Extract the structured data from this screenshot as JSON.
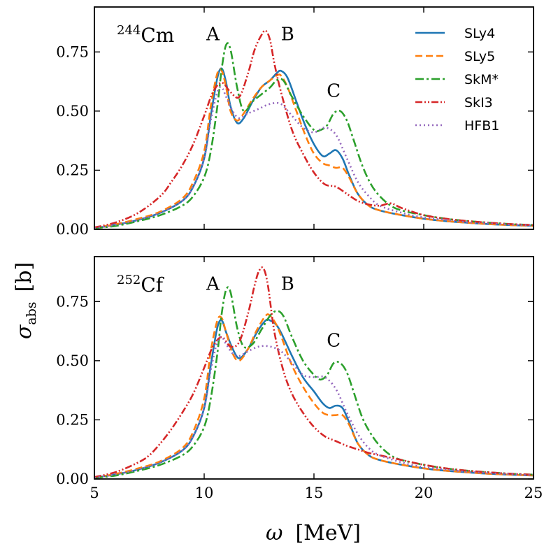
{
  "chart_data": {
    "type": "line",
    "ylabel": {
      "symbol": "σ",
      "subscript": "abs",
      "unit": "[b]"
    },
    "xlabel": {
      "symbol": "ω",
      "unit": "[MeV]"
    },
    "xlim": [
      5,
      25
    ],
    "ylim": [
      0,
      0.94
    ],
    "xticks": [
      5,
      10,
      15,
      20,
      25
    ],
    "xtick_labels": [
      "5",
      "10",
      "15",
      "20",
      "25"
    ],
    "yticks": [
      0.0,
      0.25,
      0.5,
      0.75
    ],
    "ytick_labels": [
      "0.00",
      "0.25",
      "0.50",
      "0.75"
    ],
    "grid": false,
    "legend_location": "top-right",
    "series_styles": [
      {
        "name": "SLy4",
        "color": "#1f77b4",
        "dash": "solid"
      },
      {
        "name": "SLy5",
        "color": "#ff7f0e",
        "dash": "dashed"
      },
      {
        "name": "SkM*",
        "color": "#2ca02c",
        "dash": "dashdot"
      },
      {
        "name": "SkI3",
        "color": "#d62728",
        "dash": "dashdotdot"
      },
      {
        "name": "HFB1",
        "color": "#9467bd",
        "dash": "dotted"
      }
    ],
    "panels": [
      {
        "nucleus_mass": "244",
        "nucleus_symbol": "Cm",
        "peak_labels": [
          {
            "text": "A",
            "x": 10.4,
            "y": 0.8
          },
          {
            "text": "B",
            "x": 13.8,
            "y": 0.8
          },
          {
            "text": "C",
            "x": 15.9,
            "y": 0.56
          }
        ],
        "series": [
          {
            "name": "SLy4",
            "x": [
              5,
              6,
              7,
              8,
              9,
              9.5,
              10,
              10.3,
              10.6,
              10.8,
              11,
              11.2,
              11.5,
              11.8,
              12.2,
              12.6,
              13,
              13.3,
              13.5,
              13.8,
              14.2,
              14.6,
              15,
              15.4,
              15.7,
              16,
              16.3,
              16.6,
              17,
              17.5,
              18,
              19,
              20,
              21,
              22,
              23,
              24,
              25
            ],
            "values": [
              0.005,
              0.02,
              0.04,
              0.07,
              0.12,
              0.18,
              0.3,
              0.48,
              0.64,
              0.68,
              0.62,
              0.52,
              0.45,
              0.47,
              0.54,
              0.6,
              0.63,
              0.66,
              0.67,
              0.64,
              0.54,
              0.44,
              0.36,
              0.31,
              0.32,
              0.335,
              0.3,
              0.23,
              0.15,
              0.1,
              0.08,
              0.06,
              0.045,
              0.035,
              0.028,
              0.022,
              0.018,
              0.015
            ]
          },
          {
            "name": "SLy5",
            "x": [
              5,
              6,
              7,
              8,
              9,
              9.5,
              10,
              10.3,
              10.6,
              10.8,
              11,
              11.2,
              11.5,
              11.8,
              12.2,
              12.6,
              13,
              13.3,
              13.5,
              13.8,
              14.2,
              14.6,
              15,
              15.4,
              15.7,
              16,
              16.3,
              16.6,
              17,
              17.5,
              18,
              19,
              20,
              21,
              22,
              23,
              24,
              25
            ],
            "values": [
              0.006,
              0.022,
              0.045,
              0.075,
              0.13,
              0.2,
              0.33,
              0.52,
              0.66,
              0.67,
              0.6,
              0.5,
              0.46,
              0.49,
              0.55,
              0.6,
              0.63,
              0.65,
              0.65,
              0.6,
              0.5,
              0.4,
              0.32,
              0.28,
              0.27,
              0.26,
              0.26,
              0.22,
              0.15,
              0.1,
              0.08,
              0.06,
              0.045,
              0.035,
              0.028,
              0.022,
              0.018,
              0.015
            ]
          },
          {
            "name": "SkM*",
            "x": [
              5,
              6,
              7,
              8,
              9,
              9.5,
              10,
              10.3,
              10.6,
              10.8,
              11,
              11.2,
              11.5,
              11.8,
              12.2,
              12.6,
              13,
              13.3,
              13.6,
              14,
              14.5,
              15,
              15.3,
              15.6,
              15.9,
              16.2,
              16.5,
              16.8,
              17.2,
              17.6,
              18,
              18.5,
              19,
              20,
              21,
              22,
              23,
              24,
              25
            ],
            "values": [
              0.005,
              0.015,
              0.035,
              0.06,
              0.1,
              0.14,
              0.22,
              0.33,
              0.52,
              0.68,
              0.78,
              0.76,
              0.6,
              0.5,
              0.54,
              0.57,
              0.6,
              0.63,
              0.63,
              0.56,
              0.48,
              0.42,
              0.42,
              0.44,
              0.49,
              0.5,
              0.46,
              0.38,
              0.27,
              0.19,
              0.14,
              0.1,
              0.08,
              0.06,
              0.045,
              0.035,
              0.028,
              0.022,
              0.018
            ]
          },
          {
            "name": "SkI3",
            "x": [
              5,
              6,
              7,
              8,
              8.5,
              9,
              9.5,
              10,
              10.4,
              10.8,
              11.2,
              11.6,
              12,
              12.3,
              12.6,
              12.8,
              13,
              13.2,
              13.5,
              14,
              14.5,
              15,
              15.5,
              16,
              16.5,
              17,
              17.5,
              18,
              18.5,
              19,
              20,
              21,
              22,
              23,
              24,
              25
            ],
            "values": [
              0.008,
              0.03,
              0.07,
              0.14,
              0.2,
              0.27,
              0.36,
              0.48,
              0.58,
              0.62,
              0.58,
              0.56,
              0.66,
              0.76,
              0.82,
              0.84,
              0.8,
              0.7,
              0.58,
              0.42,
              0.32,
              0.24,
              0.19,
              0.18,
              0.15,
              0.12,
              0.105,
              0.1,
              0.11,
              0.09,
              0.06,
              0.045,
              0.035,
              0.028,
              0.022,
              0.018
            ]
          },
          {
            "name": "HFB1",
            "x": [
              5,
              6,
              7,
              8,
              9,
              9.5,
              10,
              10.3,
              10.6,
              10.8,
              11,
              11.3,
              11.6,
              12,
              12.5,
              13,
              13.5,
              14,
              14.5,
              15,
              15.5,
              16,
              16.5,
              17,
              17.5,
              18,
              19,
              20,
              21,
              22,
              23,
              24,
              25
            ],
            "values": [
              0.005,
              0.02,
              0.04,
              0.07,
              0.12,
              0.18,
              0.3,
              0.46,
              0.58,
              0.6,
              0.56,
              0.5,
              0.47,
              0.49,
              0.51,
              0.53,
              0.53,
              0.48,
              0.43,
              0.41,
              0.43,
              0.4,
              0.3,
              0.2,
              0.14,
              0.1,
              0.07,
              0.05,
              0.04,
              0.03,
              0.025,
              0.02,
              0.016
            ]
          }
        ]
      },
      {
        "nucleus_mass": "252",
        "nucleus_symbol": "Cf",
        "peak_labels": [
          {
            "text": "A",
            "x": 10.4,
            "y": 0.8
          },
          {
            "text": "B",
            "x": 13.8,
            "y": 0.8
          },
          {
            "text": "C",
            "x": 15.9,
            "y": 0.56
          }
        ],
        "series": [
          {
            "name": "SLy4",
            "x": [
              5,
              6,
              7,
              8,
              9,
              9.5,
              10,
              10.3,
              10.6,
              10.8,
              11,
              11.3,
              11.6,
              12,
              12.4,
              12.8,
              13,
              13.3,
              13.6,
              14,
              14.5,
              15,
              15.4,
              15.7,
              16,
              16.3,
              16.6,
              17,
              17.5,
              18,
              19,
              20,
              21,
              22,
              23,
              24,
              25
            ],
            "values": [
              0.005,
              0.02,
              0.04,
              0.07,
              0.12,
              0.18,
              0.3,
              0.48,
              0.64,
              0.67,
              0.62,
              0.55,
              0.51,
              0.55,
              0.62,
              0.67,
              0.67,
              0.65,
              0.6,
              0.52,
              0.43,
              0.37,
              0.32,
              0.3,
              0.31,
              0.3,
              0.24,
              0.15,
              0.1,
              0.08,
              0.06,
              0.045,
              0.035,
              0.028,
              0.022,
              0.018,
              0.015
            ]
          },
          {
            "name": "SLy5",
            "x": [
              5,
              6,
              7,
              8,
              9,
              9.5,
              10,
              10.3,
              10.6,
              10.8,
              11,
              11.3,
              11.6,
              12,
              12.4,
              12.8,
              13,
              13.3,
              13.6,
              14,
              14.5,
              15,
              15.4,
              15.7,
              16,
              16.3,
              16.6,
              17,
              17.5,
              18,
              19,
              20,
              21,
              22,
              23,
              24,
              25
            ],
            "values": [
              0.006,
              0.022,
              0.045,
              0.075,
              0.13,
              0.2,
              0.34,
              0.54,
              0.67,
              0.68,
              0.62,
              0.53,
              0.5,
              0.55,
              0.63,
              0.69,
              0.69,
              0.65,
              0.58,
              0.48,
              0.39,
              0.32,
              0.28,
              0.27,
              0.27,
              0.27,
              0.23,
              0.15,
              0.1,
              0.08,
              0.06,
              0.045,
              0.035,
              0.028,
              0.022,
              0.018,
              0.015
            ]
          },
          {
            "name": "SkM*",
            "x": [
              5,
              6,
              7,
              8,
              9,
              9.5,
              10,
              10.3,
              10.6,
              10.8,
              11,
              11.2,
              11.5,
              11.8,
              12.2,
              12.6,
              13,
              13.3,
              13.6,
              14,
              14.5,
              15,
              15.3,
              15.6,
              15.9,
              16.2,
              16.5,
              16.8,
              17.2,
              17.6,
              18,
              18.5,
              19,
              20,
              21,
              22,
              23,
              24,
              25
            ],
            "values": [
              0.005,
              0.015,
              0.035,
              0.06,
              0.1,
              0.14,
              0.22,
              0.34,
              0.53,
              0.7,
              0.8,
              0.79,
              0.64,
              0.56,
              0.57,
              0.63,
              0.69,
              0.71,
              0.69,
              0.6,
              0.5,
              0.44,
              0.42,
              0.44,
              0.49,
              0.49,
              0.45,
              0.37,
              0.26,
              0.19,
              0.14,
              0.1,
              0.08,
              0.06,
              0.045,
              0.035,
              0.028,
              0.022,
              0.018
            ]
          },
          {
            "name": "SkI3",
            "x": [
              5,
              6,
              7,
              7.5,
              8,
              8.5,
              9,
              9.5,
              10,
              10.4,
              10.8,
              11.2,
              11.6,
              12,
              12.3,
              12.5,
              12.7,
              12.9,
              13.2,
              13.6,
              14,
              14.5,
              15,
              15.5,
              16,
              16.5,
              17,
              17.5,
              18,
              19,
              20,
              21,
              22,
              23,
              24,
              25
            ],
            "values": [
              0.008,
              0.03,
              0.07,
              0.1,
              0.15,
              0.21,
              0.28,
              0.36,
              0.47,
              0.56,
              0.6,
              0.56,
              0.58,
              0.7,
              0.82,
              0.88,
              0.89,
              0.82,
              0.62,
              0.46,
              0.36,
              0.28,
              0.22,
              0.18,
              0.16,
              0.14,
              0.125,
              0.11,
              0.1,
              0.08,
              0.06,
              0.045,
              0.035,
              0.028,
              0.022,
              0.018
            ]
          },
          {
            "name": "HFB1",
            "x": [
              5,
              6,
              7,
              8,
              9,
              9.5,
              10,
              10.3,
              10.6,
              10.8,
              11,
              11.3,
              11.6,
              12,
              12.5,
              13,
              13.5,
              14,
              14.5,
              15,
              15.5,
              16,
              16.5,
              17,
              17.5,
              18,
              19,
              20,
              21,
              22,
              23,
              24,
              25
            ],
            "values": [
              0.005,
              0.02,
              0.04,
              0.07,
              0.12,
              0.18,
              0.3,
              0.46,
              0.58,
              0.6,
              0.57,
              0.53,
              0.52,
              0.54,
              0.56,
              0.56,
              0.54,
              0.49,
              0.44,
              0.43,
              0.43,
              0.38,
              0.28,
              0.19,
              0.13,
              0.1,
              0.07,
              0.05,
              0.04,
              0.03,
              0.025,
              0.02,
              0.016
            ]
          }
        ]
      }
    ]
  }
}
